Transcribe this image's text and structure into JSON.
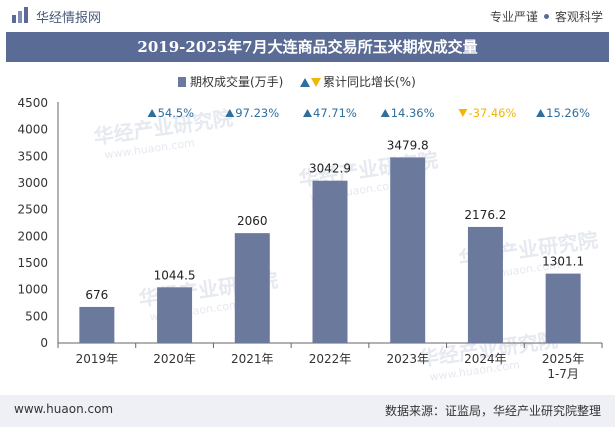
{
  "header": {
    "brand": "华经情报网",
    "slogan_left": "专业严谨",
    "slogan_right": "客观科学"
  },
  "title": "2019-2025年7月大连商品交易所玉米期权成交量",
  "footer": {
    "url": "www.huaon.com",
    "source": "数据来源：证监局，华经产业研究院整理"
  },
  "watermark": {
    "text": "华经产业研究院",
    "url": "www.huaon.com"
  },
  "colors": {
    "bar": "#6b7a9c",
    "title_bg": "#5a6c95",
    "up": "#2e6f9e",
    "down": "#f2b705"
  },
  "chart_data": {
    "type": "bar",
    "categories": [
      "2019年",
      "2020年",
      "2021年",
      "2022年",
      "2023年",
      "2024年",
      "2025年\n1-7月"
    ],
    "series": [
      {
        "name": "期权成交量(万手)",
        "values": [
          676,
          1044.5,
          2060,
          3042.9,
          3479.8,
          2176.2,
          1301.1
        ]
      },
      {
        "name": "累计同比增长(%)",
        "values": [
          null,
          54.5,
          97.23,
          47.71,
          14.36,
          -37.46,
          15.26
        ]
      }
    ],
    "value_labels": [
      "676",
      "1044.5",
      "2060",
      "3042.9",
      "3479.8",
      "2176.2",
      "1301.1"
    ],
    "growth_labels": [
      "",
      "54.5%",
      "97.23%",
      "47.71%",
      "14.36%",
      "-37.46%",
      "15.26%"
    ],
    "legend": [
      "期权成交量(万手)",
      "累计同比增长(%)"
    ],
    "yticks": [
      0,
      500,
      1000,
      1500,
      2000,
      2500,
      3000,
      3500,
      4000,
      4500
    ],
    "ylim": [
      0,
      4500
    ],
    "xlabel": "",
    "ylabel": ""
  }
}
